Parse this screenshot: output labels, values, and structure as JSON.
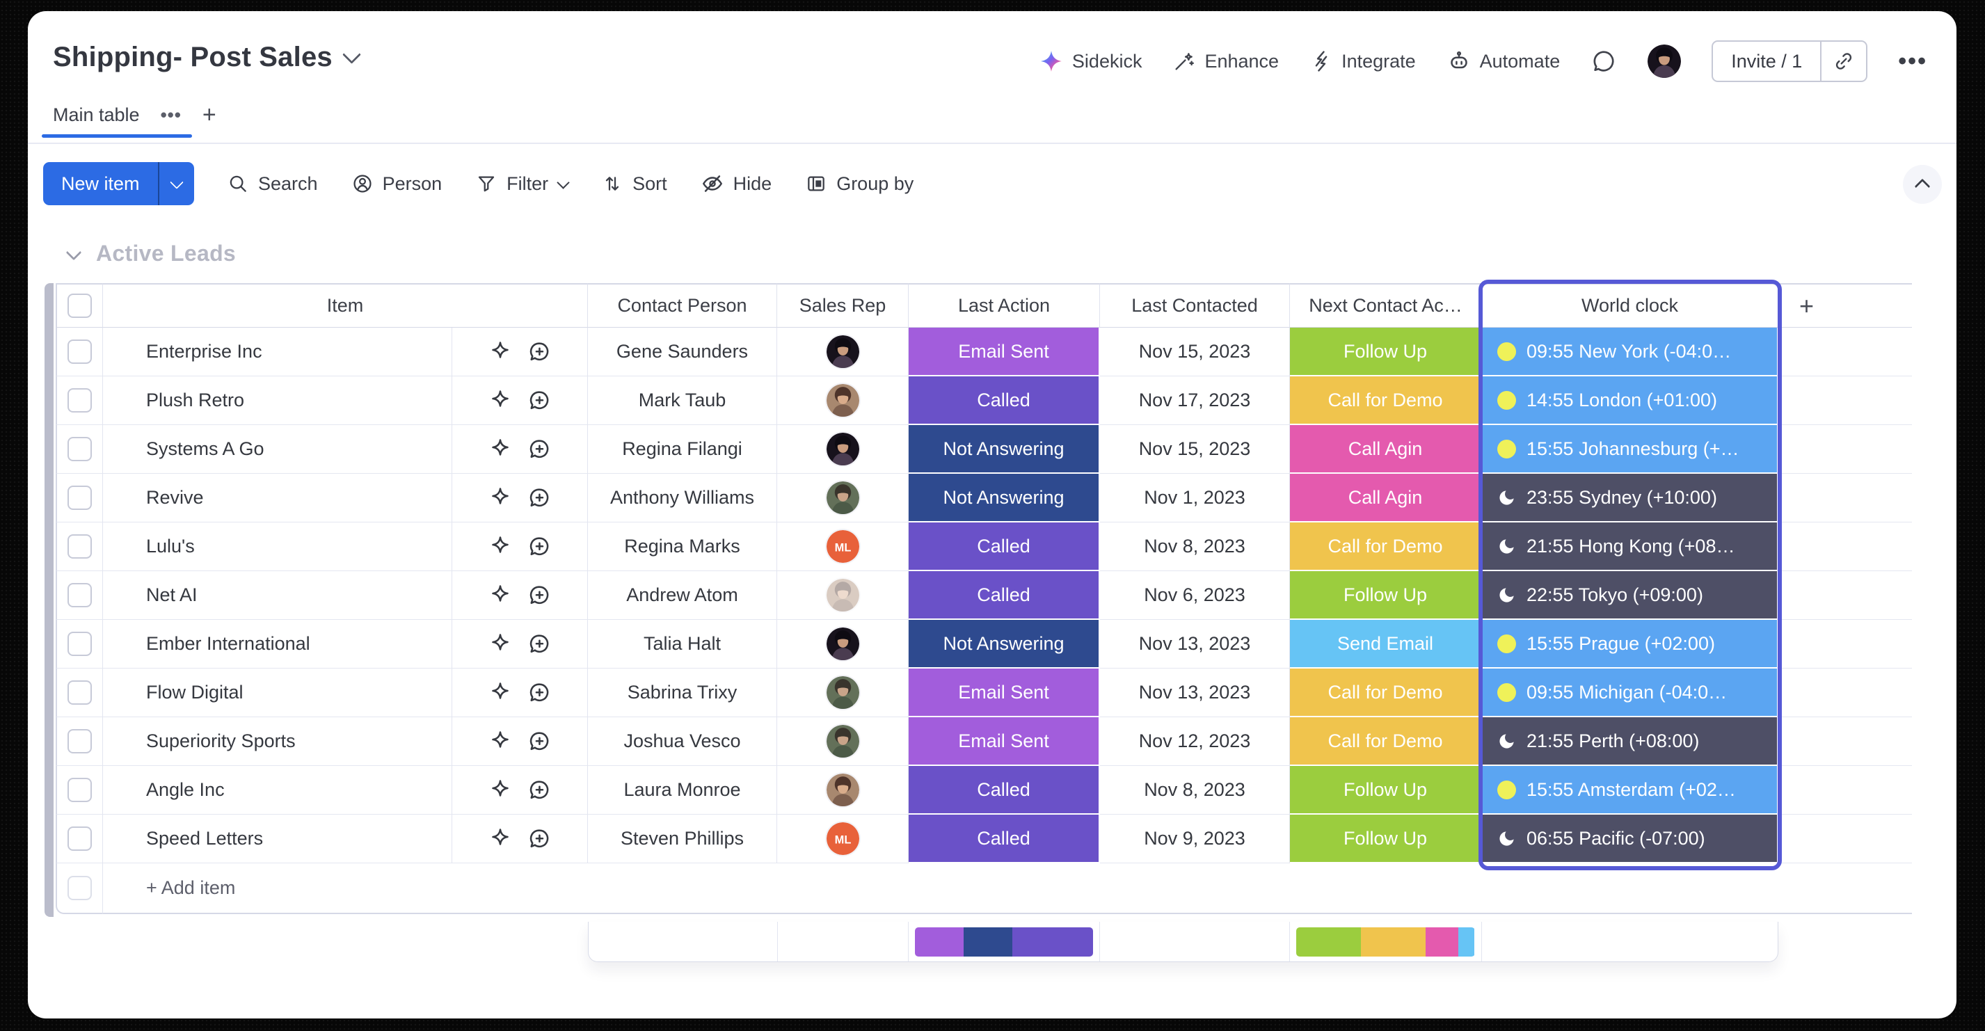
{
  "header": {
    "title": "Shipping- Post Sales",
    "actions": [
      {
        "id": "sidekick",
        "label": "Sidekick"
      },
      {
        "id": "enhance",
        "label": "Enhance"
      },
      {
        "id": "integrate",
        "label": "Integrate"
      },
      {
        "id": "automate",
        "label": "Automate"
      }
    ],
    "invite_label": "Invite / 1"
  },
  "tabs": {
    "items": [
      {
        "label": "Main table",
        "active": true
      }
    ]
  },
  "toolbar": {
    "new_item_label": "New item",
    "items": [
      {
        "id": "search",
        "label": "Search"
      },
      {
        "id": "person",
        "label": "Person"
      },
      {
        "id": "filter",
        "label": "Filter",
        "has_chevron": true
      },
      {
        "id": "sort",
        "label": "Sort"
      },
      {
        "id": "hide",
        "label": "Hide"
      },
      {
        "id": "groupby",
        "label": "Group by"
      }
    ]
  },
  "group": {
    "title": "Active Leads",
    "color": "#babccb"
  },
  "columns": {
    "item": "Item",
    "contact": "Contact Person",
    "rep": "Sales Rep",
    "last_action": "Last Action",
    "last_contacted": "Last Contacted",
    "next_action": "Next Contact Ac…",
    "world_clock": "World clock",
    "add_column": "+"
  },
  "status_colors": {
    "Email Sent": "#a25ddc",
    "Called": "#6a51c8",
    "Not Answering": "#2e4a8f",
    "Follow Up": "#9bcd3e",
    "Call for Demo": "#f0c44d",
    "Call Agin": "#e45aae",
    "Send Email": "#66c4f5"
  },
  "world_clock_colors": {
    "day": "#5ba5f2",
    "night": "#4e4f66",
    "sun": "#eff159",
    "selection_border": "#5659d6"
  },
  "table": {
    "rows": [
      {
        "item": "Enterprise Inc",
        "contact": "Gene Saunders",
        "rep": {
          "type": "photo",
          "variant": "dark"
        },
        "last_action": "Email Sent",
        "last_contacted": "Nov 15, 2023",
        "next_action": "Follow Up",
        "world_clock": {
          "label": "09:55 New York (-04:0…",
          "mode": "day"
        }
      },
      {
        "item": "Plush Retro",
        "contact": "Mark Taub",
        "rep": {
          "type": "photo",
          "variant": "brown"
        },
        "last_action": "Called",
        "last_contacted": "Nov 17, 2023",
        "next_action": "Call for Demo",
        "world_clock": {
          "label": "14:55 London (+01:00)",
          "mode": "day"
        }
      },
      {
        "item": "Systems A Go",
        "contact": "Regina Filangi",
        "rep": {
          "type": "photo",
          "variant": "dark"
        },
        "last_action": "Not Answering",
        "last_contacted": "Nov 15, 2023",
        "next_action": "Call Agin",
        "world_clock": {
          "label": "15:55 Johannesburg (+…",
          "mode": "day"
        }
      },
      {
        "item": "Revive",
        "contact": "Anthony Williams",
        "rep": {
          "type": "photo",
          "variant": "green"
        },
        "last_action": "Not Answering",
        "last_contacted": "Nov 1, 2023",
        "next_action": "Call Agin",
        "world_clock": {
          "label": "23:55 Sydney (+10:00)",
          "mode": "night"
        }
      },
      {
        "item": "Lulu's",
        "contact": "Regina Marks",
        "rep": {
          "type": "initials",
          "text": "ML",
          "color": "#e8613a"
        },
        "last_action": "Called",
        "last_contacted": "Nov 8, 2023",
        "next_action": "Call for Demo",
        "world_clock": {
          "label": "21:55 Hong Kong (+08…",
          "mode": "night"
        }
      },
      {
        "item": "Net AI",
        "contact": "Andrew Atom",
        "rep": {
          "type": "photo",
          "variant": "brown",
          "faded": true
        },
        "last_action": "Called",
        "last_contacted": "Nov 6, 2023",
        "next_action": "Follow Up",
        "world_clock": {
          "label": "22:55 Tokyo (+09:00)",
          "mode": "night"
        }
      },
      {
        "item": "Ember International",
        "contact": "Talia Halt",
        "rep": {
          "type": "photo",
          "variant": "dark"
        },
        "last_action": "Not Answering",
        "last_contacted": "Nov 13, 2023",
        "next_action": "Send Email",
        "world_clock": {
          "label": "15:55 Prague (+02:00)",
          "mode": "day"
        }
      },
      {
        "item": "Flow Digital",
        "contact": "Sabrina Trixy",
        "rep": {
          "type": "photo",
          "variant": "green"
        },
        "last_action": "Email Sent",
        "last_contacted": "Nov 13, 2023",
        "next_action": "Call for Demo",
        "world_clock": {
          "label": "09:55 Michigan (-04:0…",
          "mode": "day"
        }
      },
      {
        "item": "Superiority Sports",
        "contact": "Joshua Vesco",
        "rep": {
          "type": "photo",
          "variant": "green"
        },
        "last_action": "Email Sent",
        "last_contacted": "Nov 12, 2023",
        "next_action": "Call for Demo",
        "world_clock": {
          "label": "21:55 Perth (+08:00)",
          "mode": "night"
        }
      },
      {
        "item": "Angle Inc",
        "contact": "Laura Monroe",
        "rep": {
          "type": "photo",
          "variant": "brown"
        },
        "last_action": "Called",
        "last_contacted": "Nov 8, 2023",
        "next_action": "Follow Up",
        "world_clock": {
          "label": "15:55 Amsterdam (+02…",
          "mode": "day"
        }
      },
      {
        "item": "Speed Letters",
        "contact": "Steven Phillips",
        "rep": {
          "type": "initials",
          "text": "ML",
          "color": "#e8613a"
        },
        "last_action": "Called",
        "last_contacted": "Nov 9, 2023",
        "next_action": "Follow Up",
        "world_clock": {
          "label": "06:55 Pacific (-07:00)",
          "mode": "night"
        }
      }
    ],
    "add_item_label": "+ Add item",
    "footer": {
      "last_action_bar": [
        {
          "label": "Email Sent",
          "color": "#a25ddc",
          "count": 3
        },
        {
          "label": "Not Answering",
          "color": "#2e4a8f",
          "count": 3
        },
        {
          "label": "Called",
          "color": "#6a51c8",
          "count": 5
        }
      ],
      "next_action_bar": [
        {
          "label": "Follow Up",
          "color": "#9bcd3e",
          "count": 4
        },
        {
          "label": "Call for Demo",
          "color": "#f0c44d",
          "count": 4
        },
        {
          "label": "Call Agin",
          "color": "#e45aae",
          "count": 2
        },
        {
          "label": "Send Email",
          "color": "#66c4f5",
          "count": 1
        }
      ],
      "total": 11
    }
  },
  "accent_colors": {
    "primary_button": "#2c6be4",
    "tab_underline": "#2c6be4"
  }
}
